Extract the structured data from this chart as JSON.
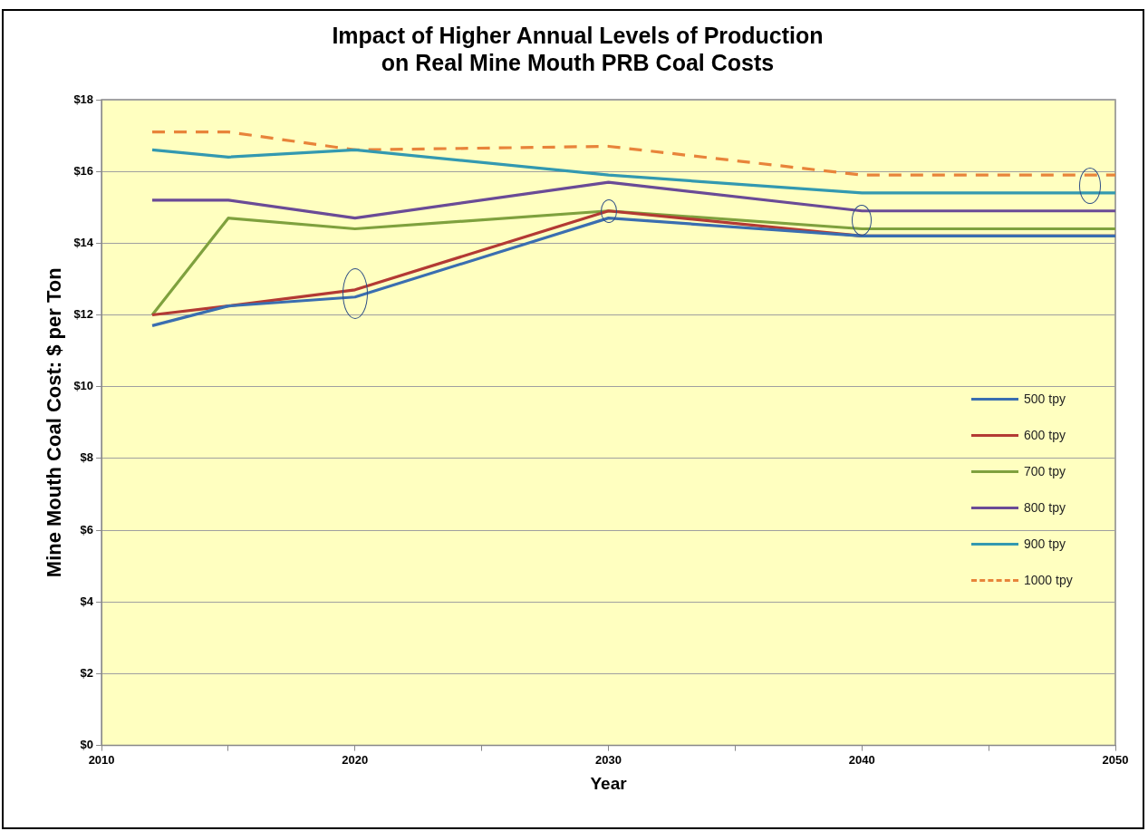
{
  "chart_data": {
    "type": "line",
    "title": "Impact of Higher Annual Levels of Production\non Real Mine Mouth PRB Coal Costs",
    "xlabel": "Year",
    "ylabel": "Mine Mouth Coal Cost: $ per Ton",
    "x": [
      2012,
      2015,
      2020,
      2030,
      2040,
      2050
    ],
    "series": [
      {
        "name": "500 tpy",
        "color": "#3a6eb0",
        "values": [
          11.7,
          12.25,
          12.5,
          14.7,
          14.2,
          14.2
        ]
      },
      {
        "name": "600 tpy",
        "color": "#b33a34",
        "values": [
          12.0,
          12.25,
          12.7,
          14.9,
          14.2,
          14.2
        ]
      },
      {
        "name": "700 tpy",
        "color": "#7fa13e",
        "values": [
          12.0,
          14.7,
          14.4,
          14.9,
          14.4,
          14.4
        ]
      },
      {
        "name": "800 tpy",
        "color": "#6a4b96",
        "values": [
          15.2,
          15.2,
          14.7,
          15.7,
          14.9,
          14.9
        ]
      },
      {
        "name": "900 tpy",
        "color": "#3399b0",
        "values": [
          16.6,
          16.4,
          16.6,
          15.9,
          15.4,
          15.4
        ]
      },
      {
        "name": "1000 tpy",
        "color": "#e8843a",
        "line_style": "dashed",
        "values": [
          17.1,
          17.1,
          16.6,
          16.7,
          15.9,
          15.9
        ]
      }
    ],
    "xlim": [
      2010,
      2050
    ],
    "xticks": [
      2010,
      {
        "value": 2015,
        "label": null
      },
      2020,
      {
        "value": 2025,
        "label": null
      },
      2030,
      {
        "value": 2035,
        "label": null
      },
      2040,
      {
        "value": 2045,
        "label": null
      },
      2050
    ],
    "ylim": [
      0,
      18
    ],
    "yticks": [
      {
        "value": 0,
        "label": "$0"
      },
      {
        "value": 2,
        "label": "$2"
      },
      {
        "value": 4,
        "label": "$4"
      },
      {
        "value": 6,
        "label": "$6"
      },
      {
        "value": 8,
        "label": "$8"
      },
      {
        "value": 10,
        "label": "$10"
      },
      {
        "value": 12,
        "label": "$12"
      },
      {
        "value": 14,
        "label": "$14"
      },
      {
        "value": 16,
        "label": "$16"
      },
      {
        "value": 18,
        "label": "$18"
      }
    ],
    "grid": "y",
    "legend": "right",
    "marker": "none",
    "line_style": "solid"
  }
}
